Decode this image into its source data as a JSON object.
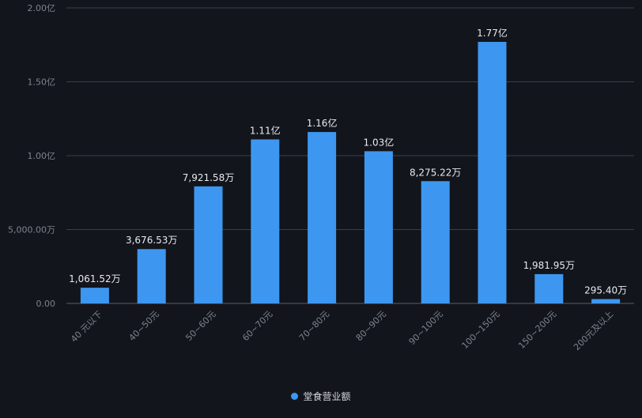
{
  "chart_data": {
    "type": "bar",
    "categories": [
      "40 元以下",
      "40~50元",
      "50~60元",
      "60~70元",
      "70~80元",
      "80~90元",
      "90~100元",
      "100~150元",
      "150~200元",
      "200元及以上"
    ],
    "series": [
      {
        "name": "堂食营业额",
        "values": [
          10615200,
          36765300,
          79215800,
          111000000,
          116000000,
          103000000,
          82752200,
          177000000,
          19819500,
          2954000
        ],
        "labels": [
          "1,061.52万",
          "3,676.53万",
          "7,921.58万",
          "1.11亿",
          "1.16亿",
          "1.03亿",
          "8,275.22万",
          "1.77亿",
          "1,981.95万",
          "295.40万"
        ]
      }
    ],
    "yticks": [
      0,
      50000000,
      100000000,
      150000000,
      200000000
    ],
    "ytick_labels": [
      "0.00",
      "5,000.00万",
      "1.00亿",
      "1.50亿",
      "2.00亿"
    ],
    "ylim": [
      0,
      200000000
    ],
    "grid": true,
    "legend_position": "bottom-center",
    "colors": {
      "bar": "#3d97f0",
      "background": "#12151c",
      "grid": "#3a3f4a",
      "axis_label": "#7d838d",
      "data_label": "#e8eaee"
    }
  }
}
